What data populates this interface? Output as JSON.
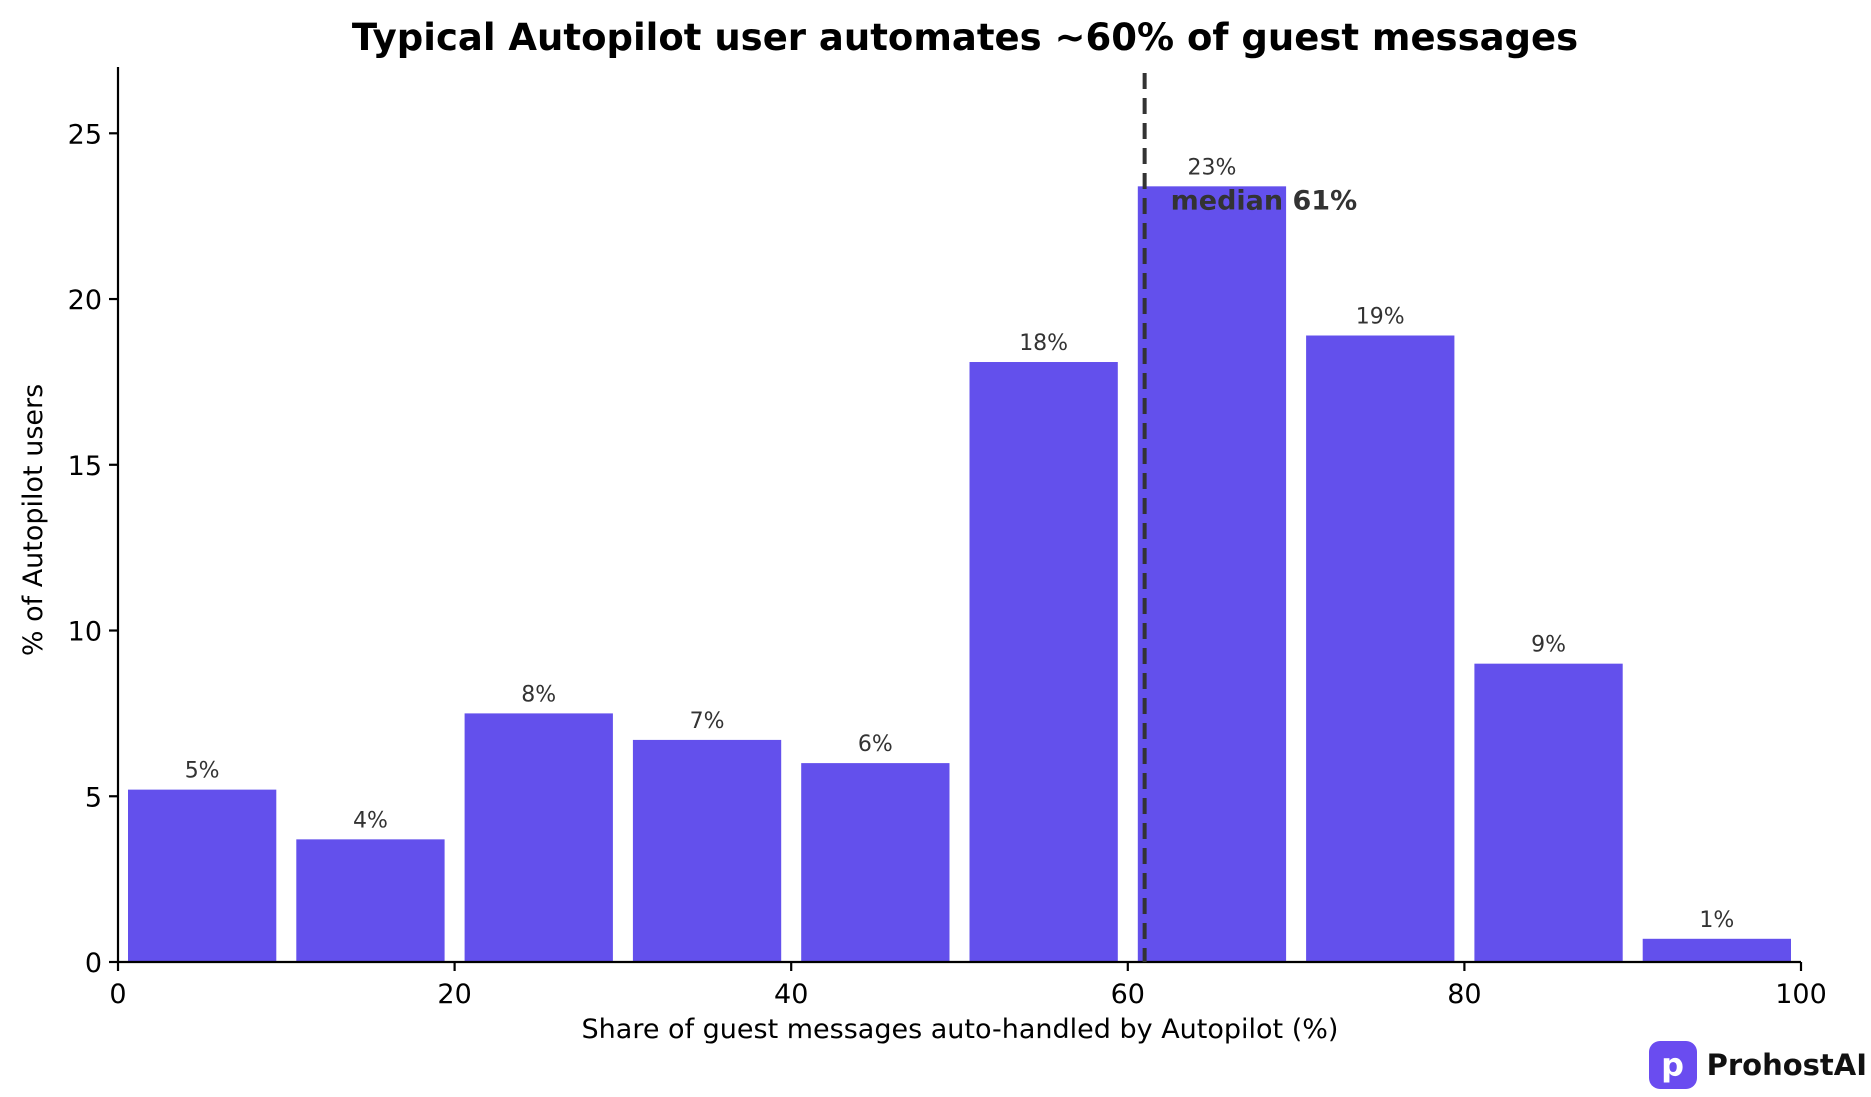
{
  "chart_data": {
    "type": "bar",
    "title": "Typical Autopilot user automates ~60% of guest messages",
    "xlabel": "Share of guest messages auto-handled by Autopilot (%)",
    "ylabel": "% of Autopilot users",
    "xlim": [
      0,
      100
    ],
    "ylim": [
      0,
      27
    ],
    "xticks": [
      0,
      20,
      40,
      60,
      80,
      100
    ],
    "yticks": [
      0,
      5,
      10,
      15,
      20,
      25
    ],
    "bins": [
      [
        0,
        10
      ],
      [
        10,
        20
      ],
      [
        20,
        30
      ],
      [
        30,
        40
      ],
      [
        40,
        50
      ],
      [
        50,
        60
      ],
      [
        60,
        70
      ],
      [
        70,
        80
      ],
      [
        80,
        90
      ],
      [
        90,
        100
      ]
    ],
    "values": [
      5.2,
      3.7,
      7.5,
      6.7,
      6.0,
      18.1,
      23.4,
      18.9,
      9.0,
      0.7
    ],
    "data_labels": [
      "5%",
      "4%",
      "8%",
      "7%",
      "6%",
      "18%",
      "23%",
      "19%",
      "9%",
      "1%"
    ],
    "median": 61,
    "median_label": "median 61%",
    "bar_color": "#6350ec",
    "median_line_color": "#333333",
    "grid": false,
    "legend": "none"
  },
  "brand": {
    "name": "ProhostAI",
    "icon_letter": "p",
    "icon_color": "#6a4cf0"
  }
}
